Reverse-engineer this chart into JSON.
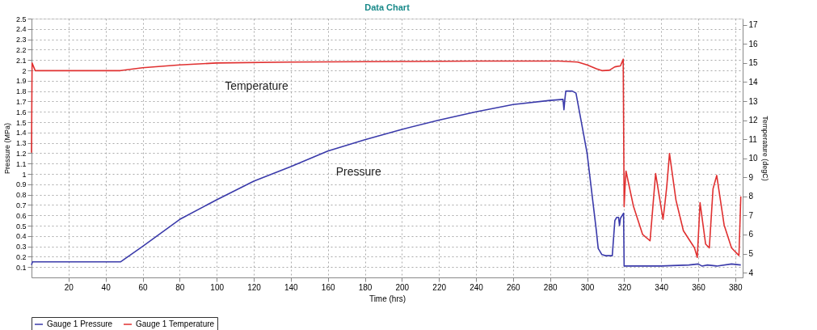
{
  "chart_data": {
    "type": "line",
    "title": "Data Chart",
    "xlabel": "Time (hrs)",
    "ylabel": "Pressure (MPa)",
    "y2label": "Temperature (degC)",
    "xlim": [
      0,
      384
    ],
    "xticks": [
      20,
      40,
      60,
      80,
      100,
      120,
      140,
      160,
      180,
      200,
      220,
      240,
      260,
      280,
      300,
      320,
      340,
      360,
      380
    ],
    "ylim": [
      0,
      2.5
    ],
    "yticks": [
      0.1,
      0.2,
      0.3,
      0.4,
      0.5,
      0.6,
      0.7,
      0.8,
      0.9,
      1,
      1.1,
      1.2,
      1.3,
      1.4,
      1.5,
      1.6,
      1.7,
      1.8,
      1.9,
      2,
      2.1,
      2.2,
      2.3,
      2.4,
      2.5
    ],
    "y2lim": [
      3.75,
      17.33
    ],
    "y2ticks": [
      4,
      5,
      6,
      7,
      8,
      9,
      10,
      11,
      12,
      13,
      14,
      15,
      16,
      17
    ],
    "grid": true,
    "legend": "bottom",
    "marker": "none",
    "line_style": "solid",
    "annotations": [
      {
        "text": "Temperature",
        "x": 100,
        "y": 2.05
      },
      {
        "text": "Pressure",
        "x": 160,
        "y": 1.22
      }
    ],
    "series": [
      {
        "name": "Gauge 1 Pressure",
        "color": "#3a3aaa",
        "x": [
          0,
          0.5,
          10,
          30,
          48,
          60,
          80,
          100,
          120,
          140,
          160,
          180,
          200,
          220,
          240,
          260,
          280,
          287,
          287.5,
          288,
          288.5,
          289,
          292,
          294,
          300,
          305,
          306,
          308,
          310,
          313.6,
          315,
          316,
          317,
          317.5,
          318,
          319.7,
          320,
          325,
          340,
          355,
          360,
          362,
          365,
          370,
          378,
          383
        ],
        "values": [
          0.12,
          0.15,
          0.15,
          0.15,
          0.15,
          0.3,
          0.56,
          0.75,
          0.93,
          1.07,
          1.22,
          1.33,
          1.43,
          1.52,
          1.6,
          1.67,
          1.71,
          1.72,
          1.62,
          1.72,
          1.8,
          1.8,
          1.8,
          1.78,
          1.2,
          0.45,
          0.28,
          0.22,
          0.21,
          0.21,
          0.55,
          0.58,
          0.58,
          0.5,
          0.57,
          0.62,
          0.11,
          0.11,
          0.11,
          0.12,
          0.13,
          0.11,
          0.12,
          0.11,
          0.13,
          0.12
        ]
      },
      {
        "name": "Gauge 1 Temperature",
        "color": "#e03030",
        "axis": "y2",
        "x": [
          0,
          0.3,
          2,
          48,
          60,
          80,
          100,
          140,
          200,
          240,
          285,
          295,
          300,
          305,
          308,
          312,
          315,
          318,
          319.5,
          320,
          320.5,
          321,
          325,
          330,
          334,
          337,
          341,
          342,
          343,
          344.5,
          348,
          352,
          358,
          359.5,
          361,
          364,
          366,
          368,
          370,
          374,
          378,
          382,
          383
        ],
        "values": [
          10.3,
          15.0,
          14.6,
          14.6,
          14.75,
          14.9,
          15.0,
          15.05,
          15.08,
          15.1,
          15.1,
          15.05,
          14.9,
          14.7,
          14.6,
          14.62,
          14.8,
          14.85,
          15.2,
          7.46,
          8.5,
          9.33,
          7.5,
          6.0,
          5.67,
          9.2,
          6.8,
          7.6,
          8.5,
          10.25,
          7.8,
          6.2,
          5.3,
          4.8,
          7.67,
          5.5,
          5.3,
          8.4,
          9.1,
          6.5,
          5.3,
          4.9,
          8.0
        ]
      }
    ]
  }
}
